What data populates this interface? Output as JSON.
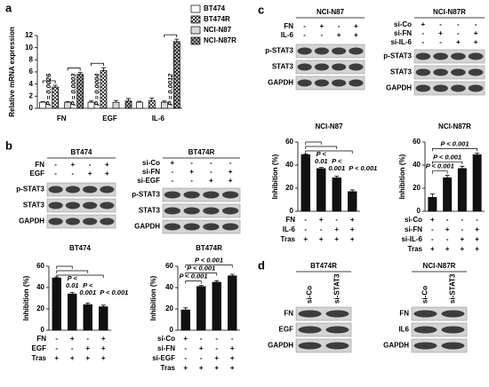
{
  "panel_labels": [
    "a",
    "b",
    "c",
    "d"
  ],
  "chart_data": [
    {
      "type": "bar",
      "ylabel": "Relative mRNA expression",
      "categories": [
        "FN",
        "EGF",
        "IL-6"
      ],
      "series": [
        {
          "name": "BT474",
          "color": "#ffffff",
          "values": [
            1,
            1,
            1
          ],
          "errors": [
            0.1,
            0.2,
            0.15
          ]
        },
        {
          "name": "BT474R",
          "color": "#ffffff",
          "pattern": "crosshatch",
          "values": [
            3.5,
            6.2,
            1.3
          ],
          "errors": [
            0.3,
            0.5,
            0.4
          ]
        },
        {
          "name": "NCI-N87",
          "color": "#d9d9d9",
          "values": [
            1,
            1,
            1
          ],
          "errors": [
            0.1,
            0.3,
            0.2
          ]
        },
        {
          "name": "NCI-N87R",
          "color": "#555555",
          "pattern": "checker",
          "values": [
            5.6,
            1.2,
            11
          ],
          "errors": [
            0.3,
            0.4,
            0.4
          ]
        }
      ],
      "ylim": [
        0,
        12
      ],
      "yticks": [
        0,
        2,
        4,
        6,
        8,
        10,
        12
      ],
      "annotations": [
        "P = 0.0026",
        "P = 0.0003",
        "P = 0.0004",
        "P = 0.0012"
      ],
      "legend": "upper right"
    },
    {
      "type": "bar",
      "title": "BT474",
      "ylabel": "Inhibition (%)",
      "values": [
        49,
        34,
        24,
        22
      ],
      "errors": [
        1,
        1.5,
        1.5,
        1.5
      ],
      "color": "#111111",
      "ylim": [
        0,
        60
      ],
      "yticks": [
        0,
        20,
        40,
        60
      ],
      "treatments": [
        {
          "name": "FN",
          "signs": [
            "-",
            "+",
            "-",
            "+"
          ]
        },
        {
          "name": "EGF",
          "signs": [
            "-",
            "-",
            "+",
            "+"
          ]
        },
        {
          "name": "Tras",
          "signs": [
            "+",
            "+",
            "+",
            "+"
          ]
        }
      ],
      "annotations": [
        [
          "P <",
          "0.01"
        ],
        [
          "P <",
          "0.001"
        ],
        [
          "P < 0.001"
        ]
      ]
    },
    {
      "type": "bar",
      "title": "BT474R",
      "ylabel": "Inhibition (%)",
      "values": [
        19,
        41,
        45,
        51
      ],
      "errors": [
        2,
        1,
        1.5,
        1.5
      ],
      "color": "#111111",
      "ylim": [
        0,
        60
      ],
      "yticks": [
        0,
        20,
        40,
        60
      ],
      "treatments": [
        {
          "name": "si-Co",
          "signs": [
            "+",
            "-",
            "-",
            "-"
          ]
        },
        {
          "name": "si-FN",
          "signs": [
            "-",
            "+",
            "-",
            "+"
          ]
        },
        {
          "name": "si-EGF",
          "signs": [
            "-",
            "-",
            "+",
            "+"
          ]
        },
        {
          "name": "Tras",
          "signs": [
            "+",
            "+",
            "+",
            "+"
          ]
        }
      ],
      "annotations": [
        [
          "P < 0.001"
        ],
        [
          "P < 0.001"
        ],
        [
          "P < 0.001"
        ]
      ]
    },
    {
      "type": "bar",
      "title": "NCI-N87",
      "ylabel": "Inhibition (%)",
      "values": [
        49,
        37,
        29,
        17
      ],
      "errors": [
        0.8,
        1,
        1.5,
        1.5
      ],
      "color": "#111111",
      "ylim": [
        0,
        60
      ],
      "yticks": [
        0,
        20,
        40,
        60
      ],
      "treatments": [
        {
          "name": "FN",
          "signs": [
            "-",
            "+",
            "-",
            "+"
          ]
        },
        {
          "name": "IL-6",
          "signs": [
            "-",
            "-",
            "+",
            "+"
          ]
        },
        {
          "name": "Tras",
          "signs": [
            "+",
            "+",
            "+",
            "+"
          ]
        }
      ],
      "annotations": [
        [
          "P <",
          "0.01"
        ],
        [
          "P <",
          "0.001"
        ],
        [
          "P < 0.001"
        ]
      ]
    },
    {
      "type": "bar",
      "title": "NCI-N87R",
      "ylabel": "Inhibition (%)",
      "values": [
        12,
        29,
        37,
        49
      ],
      "errors": [
        3,
        2,
        2,
        1.5
      ],
      "color": "#111111",
      "ylim": [
        0,
        60
      ],
      "yticks": [
        0,
        20,
        40,
        60
      ],
      "treatments": [
        {
          "name": "si-Co",
          "signs": [
            "+",
            "-",
            "-",
            "-"
          ]
        },
        {
          "name": "si-FN",
          "signs": [
            "-",
            "+",
            "-",
            "+"
          ]
        },
        {
          "name": "si-IL-6",
          "signs": [
            "-",
            "-",
            "+",
            "+"
          ]
        },
        {
          "name": "Tras",
          "signs": [
            "+",
            "+",
            "+",
            "+"
          ]
        }
      ],
      "annotations": [
        [
          "P < 0.001"
        ],
        [
          "P < 0.001"
        ],
        [
          "P < 0.001"
        ]
      ]
    }
  ],
  "blots": [
    {
      "title": "BT474",
      "treatments": [
        {
          "name": "FN",
          "signs": [
            "-",
            "+",
            "-",
            "+"
          ]
        },
        {
          "name": "EGF",
          "signs": [
            "-",
            "-",
            "+",
            "+"
          ]
        }
      ],
      "rows": [
        "p-STAT3",
        "STAT3",
        "GAPDH"
      ]
    },
    {
      "title": "BT474R",
      "treatments": [
        {
          "name": "si-Co",
          "signs": [
            "+",
            "-",
            "-",
            "-"
          ]
        },
        {
          "name": "si-FN",
          "signs": [
            "-",
            "+",
            "-",
            "+"
          ]
        },
        {
          "name": "si-EGF",
          "signs": [
            "-",
            "-",
            "+",
            "+"
          ]
        }
      ],
      "rows": [
        "p-STAT3",
        "STAT3",
        "GAPDH"
      ]
    },
    {
      "title": "NCI-N87",
      "treatments": [
        {
          "name": "FN",
          "signs": [
            "-",
            "+",
            "-",
            "+"
          ]
        },
        {
          "name": "IL-6",
          "signs": [
            "-",
            "-",
            "+",
            "+"
          ]
        }
      ],
      "rows": [
        "p-STAT3",
        "STAT3",
        "GAPDH"
      ]
    },
    {
      "title": "NCI-N87R",
      "treatments": [
        {
          "name": "si-Co",
          "signs": [
            "+",
            "-",
            "-",
            "-"
          ]
        },
        {
          "name": "si-FN",
          "signs": [
            "-",
            "+",
            "-",
            "+"
          ]
        },
        {
          "name": "si-IL-6",
          "signs": [
            "-",
            "-",
            "+",
            "+"
          ]
        }
      ],
      "rows": [
        "p-STAT3",
        "STAT3",
        "GAPDH"
      ]
    },
    {
      "title": "BT474R",
      "lanes": [
        "si-Co",
        "si-STAT3"
      ],
      "rows": [
        "FN",
        "EGF",
        "GAPDH"
      ]
    },
    {
      "title": "NCI-N87R",
      "lanes": [
        "si-Co",
        "si-STAT3"
      ],
      "rows": [
        "FN",
        "IL6",
        "GAPDH"
      ]
    }
  ]
}
